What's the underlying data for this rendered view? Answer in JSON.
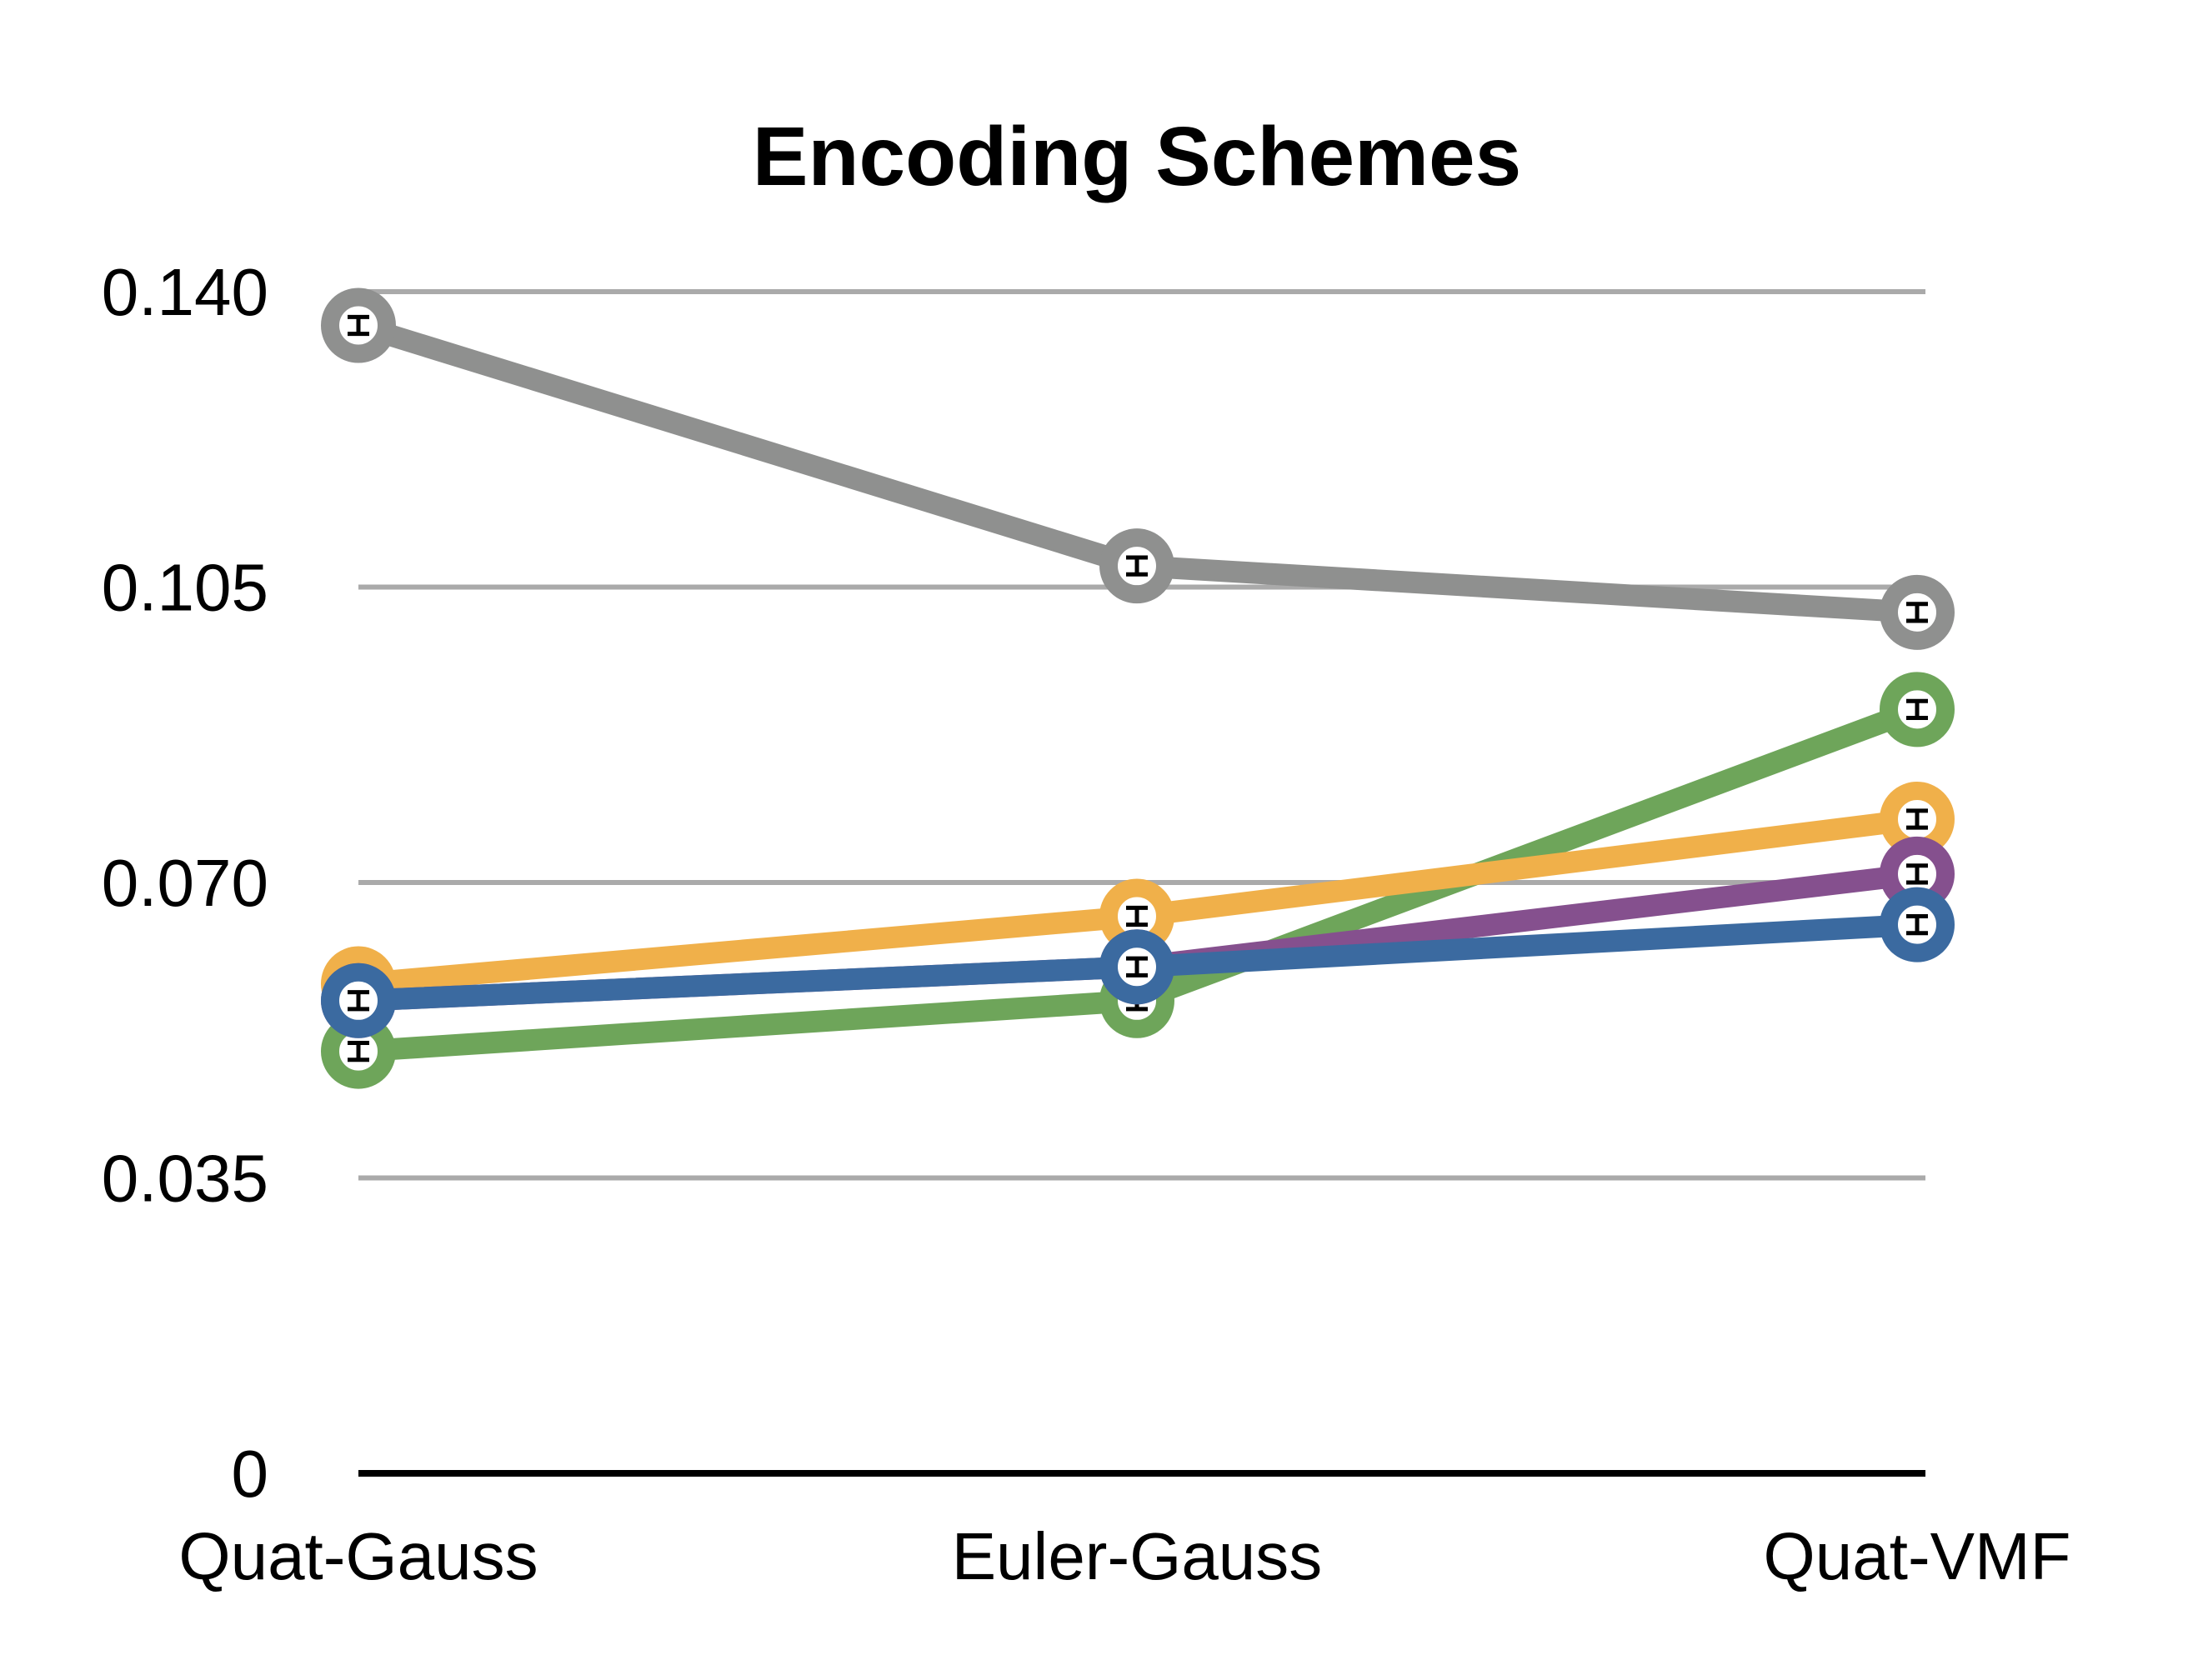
{
  "chart_data": {
    "type": "line",
    "title": "Encoding Schemes",
    "xlabel": "",
    "ylabel": "",
    "categories": [
      "Quat-Gauss",
      "Euler-Gauss",
      "Quat-VMF"
    ],
    "yticks": [
      "0",
      "0.035",
      "0.070",
      "0.105",
      "0.140"
    ],
    "ytick_values": [
      0,
      0.035,
      0.07,
      0.105,
      0.14
    ],
    "ylim": [
      0,
      0.14
    ],
    "grid": true,
    "legend": "none",
    "series": [
      {
        "color": "#8f908f",
        "values": [
          0.136,
          0.1075,
          0.102
        ],
        "error": [
          0.001,
          0.001,
          0.001
        ]
      },
      {
        "color": "#6ea55a",
        "values": [
          0.05,
          0.056,
          0.0905
        ],
        "error": [
          0.001,
          0.001,
          0.001
        ]
      },
      {
        "color": "#f0b04a",
        "values": [
          0.058,
          0.066,
          0.0775
        ],
        "error": [
          0.001,
          0.001,
          0.001
        ]
      },
      {
        "color": "#85508e",
        "values": [
          0.056,
          0.06,
          0.071
        ],
        "error": [
          0.001,
          0.001,
          0.001
        ]
      },
      {
        "color": "#3b6aa0",
        "values": [
          0.056,
          0.06,
          0.065
        ],
        "error": [
          0.001,
          0.001,
          0.001
        ]
      }
    ]
  }
}
